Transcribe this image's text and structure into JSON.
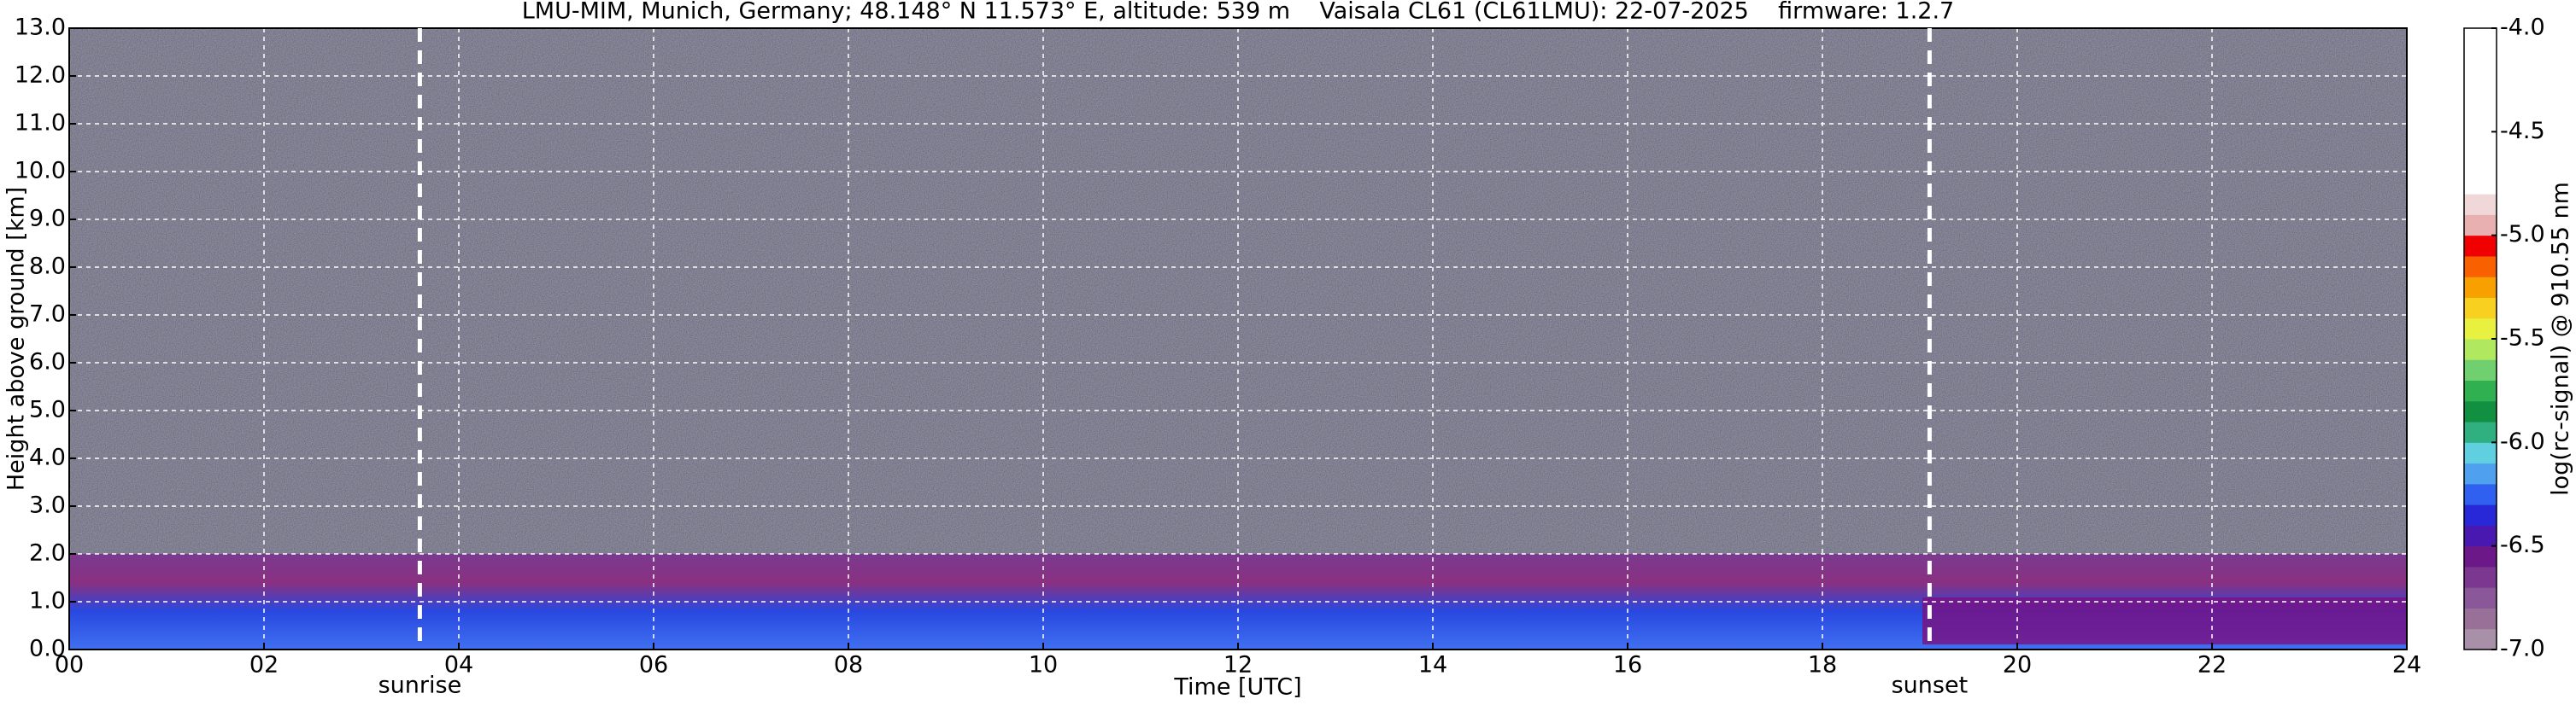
{
  "chart_data": {
    "type": "heatmap",
    "title": "LMU-MIM, Munich, Germany; 48.148° N 11.573° E, altitude: 539 m    Vaisala CL61 (CL61LMU): 22-07-2025    firmware: 1.2.7",
    "x_label": "Time [UTC]",
    "y_label": "Height above ground [km]",
    "xlim": [
      0,
      24
    ],
    "xticks": [
      {
        "value": 0,
        "label": "00"
      },
      {
        "value": 2,
        "label": "02"
      },
      {
        "value": 4,
        "label": "04"
      },
      {
        "value": 6,
        "label": "06"
      },
      {
        "value": 8,
        "label": "08"
      },
      {
        "value": 10,
        "label": "10"
      },
      {
        "value": 12,
        "label": "12"
      },
      {
        "value": 14,
        "label": "14"
      },
      {
        "value": 16,
        "label": "16"
      },
      {
        "value": 18,
        "label": "18"
      },
      {
        "value": 20,
        "label": "20"
      },
      {
        "value": 22,
        "label": "22"
      },
      24
    ],
    "ylim": [
      0,
      13
    ],
    "yticks": [
      {
        "value": 0,
        "label": "0.0"
      },
      {
        "value": 1,
        "label": "1.0"
      },
      {
        "value": 2,
        "label": "2.0"
      },
      {
        "value": 3,
        "label": "3.0"
      },
      {
        "value": 4,
        "label": "4.0"
      },
      {
        "value": 5,
        "label": "5.0"
      },
      {
        "value": 6,
        "label": "6.0"
      },
      {
        "value": 7,
        "label": "7.0"
      },
      {
        "value": 8,
        "label": "8.0"
      },
      {
        "value": 9,
        "label": "9.0"
      },
      {
        "value": 10,
        "label": "10.0"
      },
      {
        "value": 11,
        "label": "11.0"
      },
      {
        "value": 12,
        "label": "12.0"
      },
      {
        "value": 13,
        "label": "13.0"
      }
    ],
    "grid": true,
    "annotations": [
      {
        "text": "sunrise",
        "x": 3.6
      },
      {
        "text": "sunset",
        "x": 19.1
      }
    ],
    "colorbar": {
      "label": "log(rc-signal) @ 910.55 nm",
      "lim": [
        -7,
        -4
      ],
      "ticks": [
        {
          "value": -7,
          "label": "-7.0"
        },
        -6.5,
        {
          "value": -6,
          "label": "-6.0"
        },
        -5.5,
        {
          "value": -5,
          "label": "-5.0"
        },
        -4.5,
        {
          "value": -4,
          "label": "-4.0"
        }
      ],
      "colors": [
        "#a890a8",
        "#987098",
        "#8a5898",
        "#7c3890",
        "#6c1888",
        "#4818b0",
        "#2828d8",
        "#3060f0",
        "#50a0f0",
        "#60d0e0",
        "#30b080",
        "#109040",
        "#30b050",
        "#70d070",
        "#b0e860",
        "#e8f040",
        "#f8d020",
        "#f8a000",
        "#f86000",
        "#f00000",
        "#e8b0b0",
        "#f0d8d8",
        "#ffffff",
        "#ffffff",
        "#ffffff",
        "#ffffff",
        "#ffffff",
        "#ffffff",
        "#ffffff",
        "#ffffff"
      ]
    }
  }
}
